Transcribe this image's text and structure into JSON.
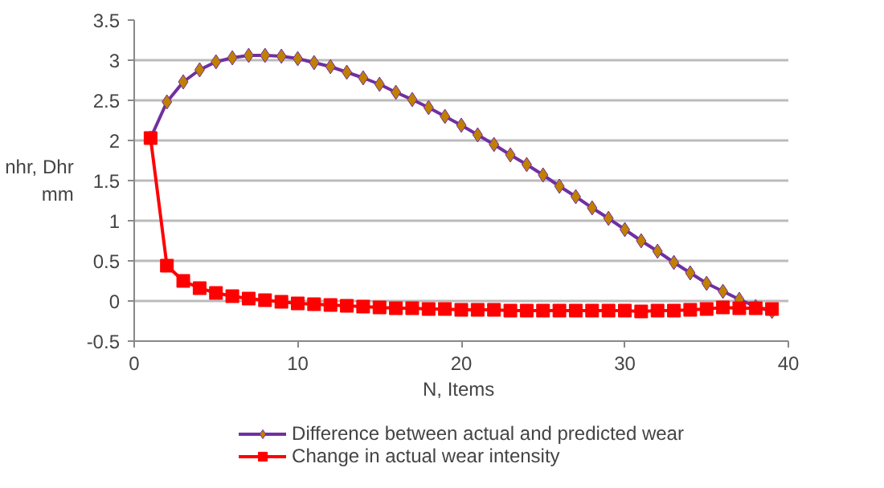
{
  "chart_data": {
    "type": "line",
    "xlabel": "N,  Items",
    "ylabel": "nhr, Dhr mm",
    "x": [
      1,
      2,
      3,
      4,
      5,
      6,
      7,
      8,
      9,
      10,
      11,
      12,
      13,
      14,
      15,
      16,
      17,
      18,
      19,
      20,
      21,
      22,
      23,
      24,
      25,
      26,
      27,
      28,
      29,
      30,
      31,
      32,
      33,
      34,
      35,
      36,
      37,
      38,
      39
    ],
    "series": [
      {
        "name": "Difference between actual and predicted wear",
        "color": "#7030a0",
        "marker": "diamond",
        "values": [
          2.03,
          2.48,
          2.73,
          2.88,
          2.98,
          3.03,
          3.06,
          3.06,
          3.05,
          3.02,
          2.97,
          2.92,
          2.85,
          2.78,
          2.7,
          2.6,
          2.51,
          2.41,
          2.3,
          2.19,
          2.07,
          1.95,
          1.82,
          1.7,
          1.57,
          1.43,
          1.3,
          1.16,
          1.03,
          0.89,
          0.75,
          0.62,
          0.48,
          0.35,
          0.22,
          0.12,
          0.02,
          -0.07,
          -0.13
        ]
      },
      {
        "name": "Change in actual wear intensity",
        "color": "#ff0000",
        "marker": "square",
        "values": [
          2.03,
          0.44,
          0.25,
          0.16,
          0.1,
          0.06,
          0.03,
          0.01,
          -0.01,
          -0.03,
          -0.04,
          -0.05,
          -0.06,
          -0.07,
          -0.08,
          -0.09,
          -0.09,
          -0.1,
          -0.1,
          -0.11,
          -0.11,
          -0.11,
          -0.12,
          -0.12,
          -0.12,
          -0.12,
          -0.12,
          -0.12,
          -0.12,
          -0.12,
          -0.13,
          -0.12,
          -0.12,
          -0.11,
          -0.1,
          -0.08,
          -0.09,
          -0.09,
          -0.1
        ]
      }
    ],
    "xlim": [
      0,
      40
    ],
    "xticks": [
      0,
      10,
      20,
      30,
      40
    ],
    "ylim": [
      -0.5,
      3.5
    ],
    "yticks": [
      -0.5,
      0,
      0.5,
      1,
      1.5,
      2,
      2.5,
      3,
      3.5
    ],
    "grid": "y",
    "legend": "bottom"
  }
}
